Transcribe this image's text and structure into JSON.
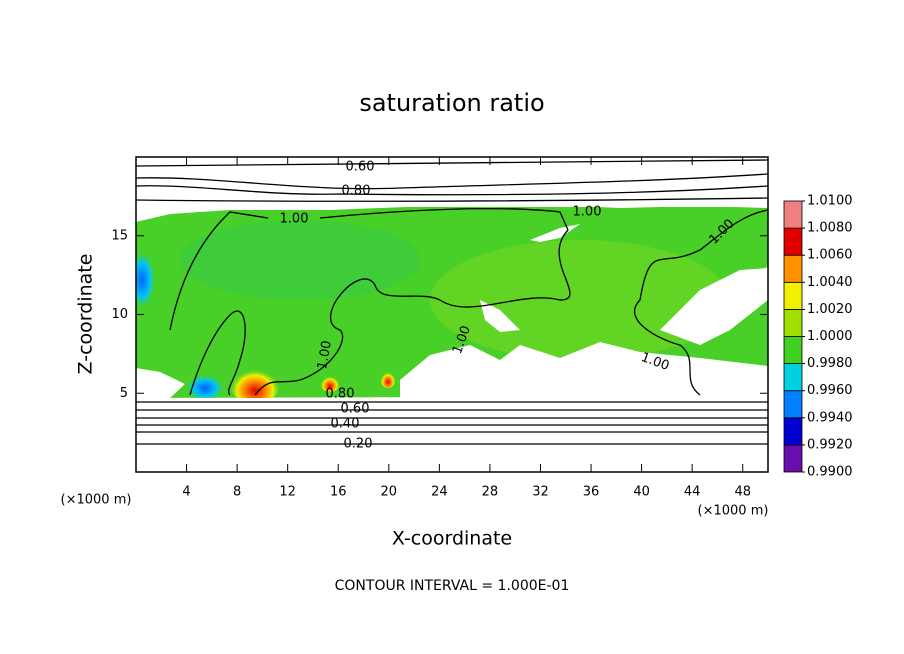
{
  "chart_data": {
    "type": "contour",
    "title": "saturation ratio",
    "x_label": "X-coordinate",
    "y_label": "Z-coordinate",
    "x_unit": "(×1000 m)",
    "y_unit": "(×1000 m)",
    "xlim": [
      0,
      50
    ],
    "ylim": [
      0,
      20
    ],
    "xticks": [
      4,
      8,
      12,
      16,
      20,
      24,
      28,
      32,
      36,
      40,
      44,
      48
    ],
    "yticks": [
      5,
      10,
      15
    ],
    "colorbar": {
      "ticks": [
        {
          "value": 0.99,
          "label": "0.9900"
        },
        {
          "value": 0.992,
          "label": "0.9920"
        },
        {
          "value": 0.994,
          "label": "0.9940"
        },
        {
          "value": 0.996,
          "label": "0.9960"
        },
        {
          "value": 0.998,
          "label": "0.9980"
        },
        {
          "value": 1.0,
          "label": "1.0000"
        },
        {
          "value": 1.002,
          "label": "1.0020"
        },
        {
          "value": 1.004,
          "label": "1.0040"
        },
        {
          "value": 1.006,
          "label": "1.0060"
        },
        {
          "value": 1.008,
          "label": "1.0080"
        },
        {
          "value": 1.01,
          "label": "1.0100"
        }
      ],
      "colors": [
        "#6a0dad",
        "#0000d0",
        "#0080ff",
        "#00d0e0",
        "#40d020",
        "#a0e000",
        "#f0f000",
        "#ff9000",
        "#e00000",
        "#f08080"
      ]
    },
    "contour_labels": [
      {
        "value": 0.6,
        "label": "0.60"
      },
      {
        "value": 0.8,
        "label": "0.80"
      },
      {
        "value": 1.0,
        "label": "1.00"
      },
      {
        "value": 1.0,
        "label": "1.00"
      },
      {
        "value": 1.0,
        "label": "1.00"
      },
      {
        "value": 1.0,
        "label": "1.00"
      },
      {
        "value": 1.0,
        "label": "1.00"
      },
      {
        "value": 1.0,
        "label": "1.00"
      },
      {
        "value": 0.8,
        "label": "0.80"
      },
      {
        "value": 0.6,
        "label": "0.60"
      },
      {
        "value": 0.4,
        "label": "0.40"
      },
      {
        "value": 0.2,
        "label": "0.20"
      }
    ],
    "footnote": "CONTOUR INTERVAL = 1.000E-01"
  }
}
